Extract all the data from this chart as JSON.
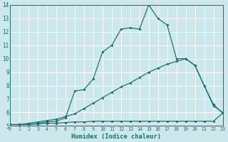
{
  "xlabel": "Humidex (Indice chaleur)",
  "bg_color": "#cce8ec",
  "grid_color": "#b8d8dc",
  "line_color": "#1a6b6b",
  "xlim": [
    0,
    23
  ],
  "ylim": [
    5,
    14
  ],
  "x_ticks": [
    0,
    1,
    2,
    3,
    4,
    5,
    6,
    7,
    8,
    9,
    10,
    11,
    12,
    13,
    14,
    15,
    16,
    17,
    18,
    19,
    20,
    21,
    22,
    23
  ],
  "y_ticks": [
    5,
    6,
    7,
    8,
    9,
    10,
    11,
    12,
    13,
    14
  ],
  "line_flat_x": [
    0,
    1,
    2,
    3,
    4,
    5,
    6,
    7,
    8,
    9,
    10,
    11,
    12,
    13,
    14,
    15,
    16,
    17,
    18,
    19,
    20,
    21,
    22,
    23
  ],
  "line_flat_y": [
    5.1,
    5.1,
    5.1,
    5.15,
    5.2,
    5.2,
    5.25,
    5.3,
    5.3,
    5.35,
    5.35,
    5.35,
    5.35,
    5.35,
    5.35,
    5.35,
    5.35,
    5.35,
    5.35,
    5.35,
    5.35,
    5.35,
    5.35,
    5.95
  ],
  "line_mid_x": [
    0,
    1,
    2,
    3,
    4,
    5,
    6,
    7,
    8,
    9,
    10,
    11,
    12,
    13,
    14,
    15,
    16,
    17,
    18,
    19,
    20,
    21,
    22,
    23
  ],
  "line_mid_y": [
    5.1,
    5.1,
    5.2,
    5.3,
    5.4,
    5.5,
    5.7,
    5.9,
    6.3,
    6.7,
    7.1,
    7.5,
    7.9,
    8.2,
    8.6,
    9.0,
    9.3,
    9.6,
    9.8,
    10.0,
    9.5,
    8.0,
    6.5,
    6.0
  ],
  "line_top_x": [
    0,
    1,
    2,
    3,
    4,
    5,
    6,
    7,
    8,
    9,
    10,
    11,
    12,
    13,
    14,
    15,
    16,
    17,
    18,
    19,
    20,
    21,
    22,
    23
  ],
  "line_top_y": [
    5.1,
    5.1,
    5.1,
    5.2,
    5.3,
    5.35,
    5.6,
    7.6,
    7.7,
    8.5,
    10.5,
    11.0,
    12.2,
    12.3,
    12.2,
    14.0,
    13.0,
    12.5,
    10.0,
    10.0,
    9.5,
    8.0,
    6.6,
    5.95
  ]
}
